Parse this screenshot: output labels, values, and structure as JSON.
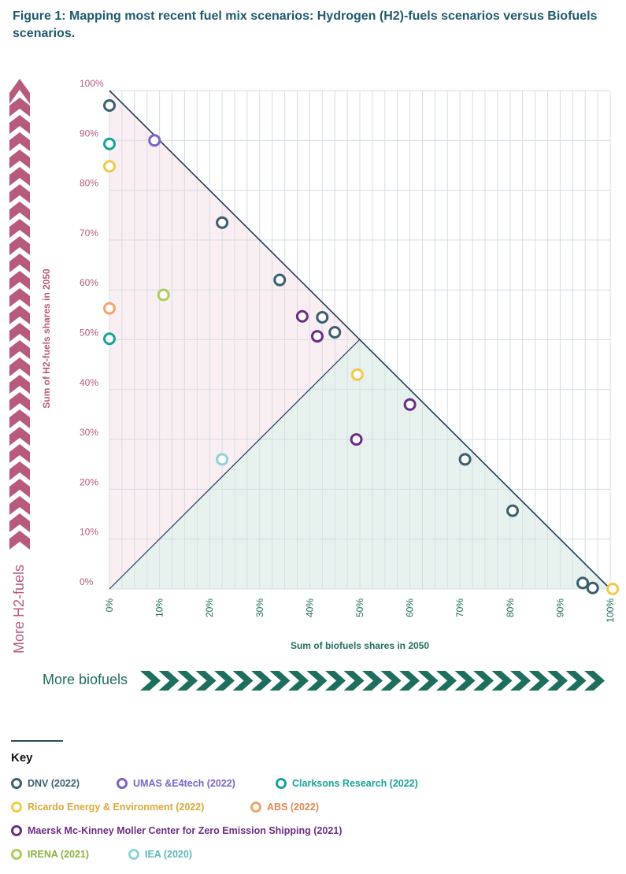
{
  "title": "Figure 1: Mapping most recent fuel mix scenarios: Hydrogen (H2)-fuels scenarios versus Biofuels scenarios.",
  "key": {
    "title": "Key",
    "items": [
      {
        "label": "DNV (2022)",
        "color": "#3b5e70"
      },
      {
        "label": "UMAS &E4tech (2022)",
        "color": "#7b63c9"
      },
      {
        "label": "Clarksons Research (2022)",
        "color": "#19a39a"
      },
      {
        "label": "Ricardo Energy & Environment (2022)",
        "color": "#f2c94c"
      },
      {
        "label": "ABS (2022)",
        "color": "#f0a56e"
      },
      {
        "label": "Maersk Mc-Kinney Moller Center for Zero Emission Shipping (2021)",
        "color": "#6c2d86"
      },
      {
        "label": "IRENA (2021)",
        "color": "#a9cf58"
      },
      {
        "label": "IEA (2020)",
        "color": "#8fd3d3"
      }
    ]
  },
  "chart_data": {
    "type": "scatter",
    "xlabel": "Sum of biofuels shares in 2050",
    "ylabel": "Sum of H2-fuels shares in 2050",
    "xlim": [
      0,
      100
    ],
    "ylim": [
      0,
      100
    ],
    "x_ticks": [
      "0%",
      "10%",
      "20%",
      "30%",
      "40%",
      "50%",
      "60%",
      "70%",
      "80%",
      "90%",
      "100%"
    ],
    "y_ticks": [
      "0%",
      "10%",
      "20%",
      "30%",
      "40%",
      "50%",
      "60%",
      "70%",
      "80%",
      "90%",
      "100%"
    ],
    "grid": true,
    "arrows": {
      "h2": "More H2-fuels",
      "bio": "More biofuels"
    },
    "series": [
      {
        "name": "DNV (2022)",
        "color": "#3b5e70",
        "points": [
          [
            0,
            97
          ],
          [
            22.5,
            73.5
          ],
          [
            34,
            62
          ],
          [
            42.5,
            54.5
          ],
          [
            45,
            51.5
          ],
          [
            71,
            26
          ],
          [
            80.5,
            15.7
          ],
          [
            94.5,
            1.2
          ],
          [
            96.5,
            0.2
          ]
        ]
      },
      {
        "name": "UMAS &E4tech (2022)",
        "color": "#7b63c9",
        "points": [
          [
            9,
            90
          ]
        ]
      },
      {
        "name": "Clarksons Research (2022)",
        "color": "#19a39a",
        "points": [
          [
            0,
            89.3
          ],
          [
            0,
            50.2
          ]
        ]
      },
      {
        "name": "Ricardo Energy & Environment (2022)",
        "color": "#f2c94c",
        "points": [
          [
            0,
            84.8
          ],
          [
            49.5,
            43
          ],
          [
            100.5,
            0
          ]
        ]
      },
      {
        "name": "ABS (2022)",
        "color": "#f0a56e",
        "points": [
          [
            0,
            56.3
          ]
        ]
      },
      {
        "name": "Maersk Mc-Kinney Moller Center for Zero Emission Shipping (2021)",
        "color": "#6c2d86",
        "points": [
          [
            38.5,
            54.7
          ],
          [
            41.5,
            50.7
          ],
          [
            60,
            37
          ],
          [
            49.3,
            30
          ]
        ]
      },
      {
        "name": "IRENA (2021)",
        "color": "#a9cf58",
        "points": [
          [
            10.8,
            59
          ]
        ]
      },
      {
        "name": "IEA (2020)",
        "color": "#8fd3d3",
        "points": [
          [
            22.5,
            26
          ]
        ]
      }
    ]
  }
}
